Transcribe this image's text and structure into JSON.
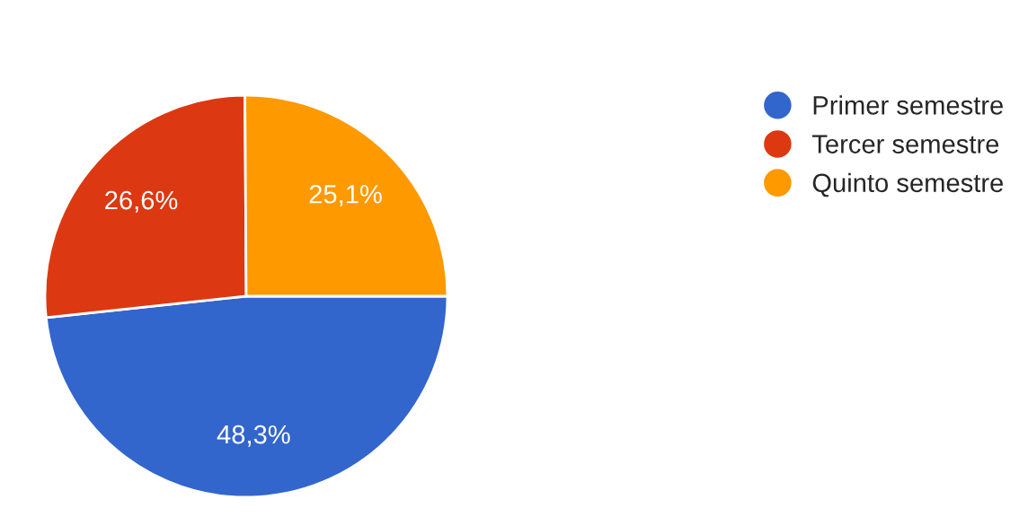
{
  "chart_data": {
    "type": "pie",
    "categories": [
      "Primer semestre",
      "Tercer semestre",
      "Quinto semestre"
    ],
    "values": [
      48.3,
      26.6,
      25.1
    ],
    "colors": [
      "#3366cc",
      "#dc3912",
      "#ff9900"
    ],
    "value_labels": [
      "48,3%",
      "26,6%",
      "25,1%"
    ],
    "legend": "top right"
  }
}
